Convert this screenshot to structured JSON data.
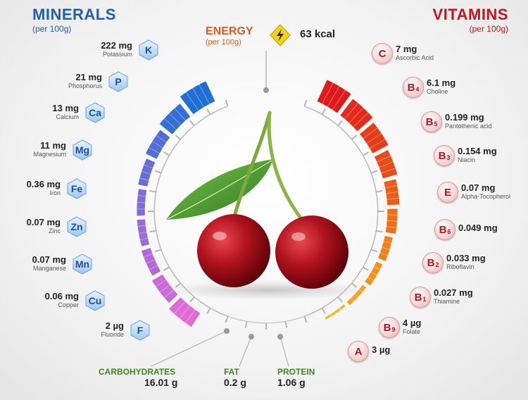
{
  "minerals": {
    "title": "MINERALS",
    "subtitle": "(per 100g)",
    "items": [
      {
        "symbol": "K",
        "amount": "222 mg",
        "name": "Potassium"
      },
      {
        "symbol": "P",
        "amount": "21 mg",
        "name": "Phosphorus"
      },
      {
        "symbol": "Ca",
        "amount": "13 mg",
        "name": "Calcium"
      },
      {
        "symbol": "Mg",
        "amount": "11 mg",
        "name": "Magnesium"
      },
      {
        "symbol": "Fe",
        "amount": "0.36 mg",
        "name": "Iron"
      },
      {
        "symbol": "Zn",
        "amount": "0.07 mg",
        "name": "Zinc"
      },
      {
        "symbol": "Mn",
        "amount": "0.07 mg",
        "name": "Manganese"
      },
      {
        "symbol": "Cu",
        "amount": "0.06 mg",
        "name": "Copper"
      },
      {
        "symbol": "F",
        "amount": "2 µg",
        "name": "Fluoride"
      }
    ]
  },
  "vitamins": {
    "title": "VITAMINS",
    "subtitle": "(per 100g)",
    "items": [
      {
        "letter": "C",
        "sub": "",
        "amount": "7 mg",
        "name": "Ascorbic Acid"
      },
      {
        "letter": "B",
        "sub": "4",
        "amount": "6.1 mg",
        "name": "Choline"
      },
      {
        "letter": "B",
        "sub": "5",
        "amount": "0.199 mg",
        "name": "Pantothenic acid"
      },
      {
        "letter": "B",
        "sub": "3",
        "amount": "0.154 mg",
        "name": "Niacin"
      },
      {
        "letter": "E",
        "sub": "",
        "amount": "0.07 mg",
        "name": "Alpha-Tocopherol"
      },
      {
        "letter": "B",
        "sub": "6",
        "amount": "0.049 mg",
        "name": ""
      },
      {
        "letter": "B",
        "sub": "2",
        "amount": "0.033 mg",
        "name": "Riboflavin"
      },
      {
        "letter": "B",
        "sub": "1",
        "amount": "0.027 mg",
        "name": "Thiamine"
      },
      {
        "letter": "B",
        "sub": "9",
        "amount": "4 µg",
        "name": "Folate"
      },
      {
        "letter": "A",
        "sub": "",
        "amount": "3 µg",
        "name": ""
      }
    ]
  },
  "energy": {
    "title": "ENERGY",
    "subtitle": "(per 100g)",
    "value": "63 kcal",
    "icon": "lightning-icon"
  },
  "macros": [
    {
      "name": "CARBOHYDRATES",
      "value": "16.01 g"
    },
    {
      "name": "FAT",
      "value": "0.2 g"
    },
    {
      "name": "PROTEIN",
      "value": "1.06 g"
    }
  ],
  "colors": {
    "minerals_title": "#1f5fb0",
    "vitamins_title": "#c0161e",
    "energy_title": "#e2571a",
    "macro_name": "#3a8a1c",
    "mineral_bar_top": "#1f6fd6",
    "mineral_bar_bottom": "#e06ad6",
    "vitamin_bar_top": "#e01a1a",
    "vitamin_bar_bottom": "#f5b41c",
    "cherry": "#b3141f",
    "leaf": "#3e9a2e"
  }
}
